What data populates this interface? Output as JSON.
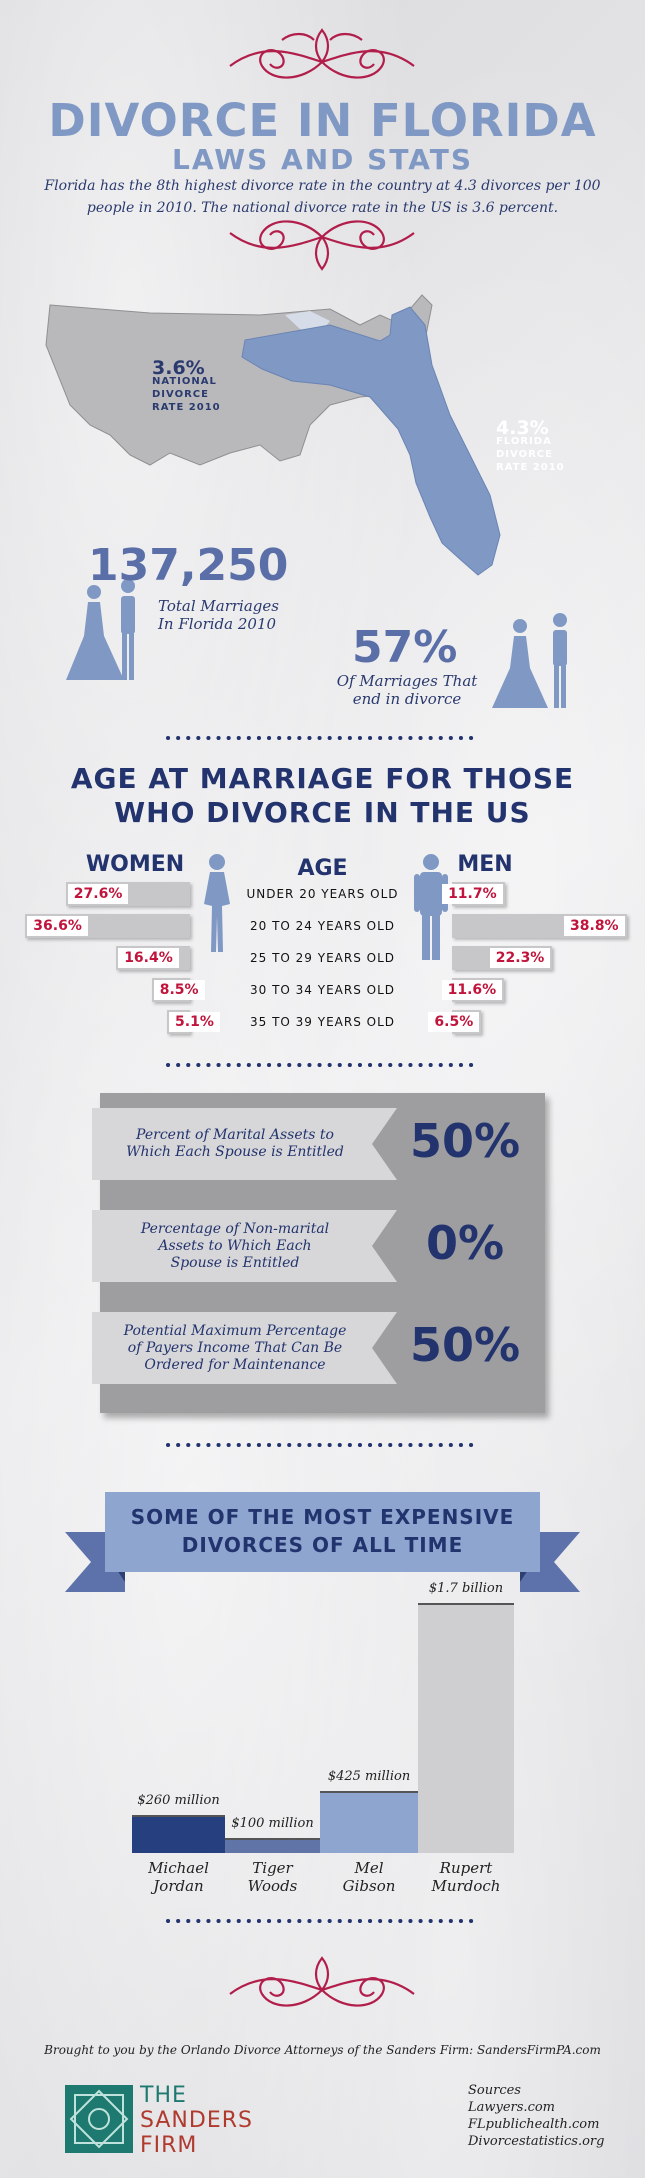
{
  "header": {
    "title": "DIVORCE IN FLORIDA",
    "subtitle": "LAWS AND STATS",
    "intro": "Florida has the 8th highest divorce rate in the country at 4.3 divorces per 100 people in 2010. The national divorce rate in the US is 3.6 percent."
  },
  "map": {
    "national_value": "3.6%",
    "national_line1": "NATIONAL",
    "national_line2": "DIVORCE",
    "national_line3": "RATE 2010",
    "florida_value": "4.3%",
    "florida_line1": "FLORIDA",
    "florida_line2": "DIVORCE",
    "florida_line3": "RATE 2010"
  },
  "stats": {
    "marriages_value": "137,250",
    "marriages_line1": "Total Marriages",
    "marriages_line2": "In Florida 2010",
    "divorce_value": "57%",
    "divorce_line1": "Of Marriages That",
    "divorce_line2": "end in divorce"
  },
  "age_section": {
    "heading_line1": "AGE AT MARRIAGE FOR THOSE",
    "heading_line2": "WHO DIVORCE IN THE US",
    "col_women": "WOMEN",
    "col_age": "AGE",
    "col_men": "MEN"
  },
  "chart_data": [
    {
      "type": "bar",
      "categories": [
        "UNDER 20 YEARS OLD",
        "20 TO 24 YEARS OLD",
        "25 TO 29 YEARS OLD",
        "30 TO 34 YEARS OLD",
        "35 TO 39 YEARS OLD"
      ],
      "series": [
        {
          "name": "WOMEN",
          "values": [
            27.6,
            36.6,
            16.4,
            8.5,
            5.1
          ],
          "labels": [
            "27.6%",
            "36.6%",
            "16.4%",
            "8.5%",
            "5.1%"
          ]
        },
        {
          "name": "MEN",
          "values": [
            11.7,
            38.8,
            22.3,
            11.6,
            6.5
          ],
          "labels": [
            "11.7%",
            "38.8%",
            "22.3%",
            "11.6%",
            "6.5%"
          ]
        }
      ],
      "title": "AGE AT MARRIAGE FOR THOSE WHO DIVORCE IN THE US",
      "colors": {
        "bar": "#c7c7c9",
        "label": "#c0143c"
      }
    },
    {
      "type": "bar",
      "categories": [
        "Michael Jordan",
        "Tiger Woods",
        "Mel Gibson",
        "Rupert Murdoch"
      ],
      "values": [
        260,
        100,
        425,
        1700
      ],
      "value_labels": [
        "$260 million",
        "$100 million",
        "$425 million",
        "$1.7 billion"
      ],
      "name_lines": [
        [
          "Michael",
          "Jordan"
        ],
        [
          "Tiger",
          "Woods"
        ],
        [
          "Mel",
          "Gibson"
        ],
        [
          "Rupert",
          "Murdoch"
        ]
      ],
      "title": "SOME OF THE MOST EXPENSIVE DIVORCES OF ALL TIME",
      "colors": [
        "#263f7e",
        "#6174a8",
        "#8ea6cf",
        "#cfcfd1"
      ]
    }
  ],
  "assets": {
    "items": [
      {
        "line1": "Percent of Marital Assets to",
        "line2": "Which Each Spouse is Entitled",
        "line3": "",
        "value": "50%"
      },
      {
        "line1": "Percentage of Non-marital",
        "line2": "Assets to Which Each",
        "line3": "Spouse is Entitled",
        "value": "0%"
      },
      {
        "line1": "Potential Maximum Percentage",
        "line2": "of Payers Income That Can Be",
        "line3": "Ordered for Maintenance",
        "value": "50%"
      }
    ]
  },
  "divorces": {
    "banner_line1": "SOME OF THE MOST EXPENSIVE",
    "banner_line2": "DIVORCES OF ALL TIME"
  },
  "footer": {
    "credit": "Brought to you by the Orlando Divorce Attorneys of the Sanders Firm: SandersFirmPA.com",
    "logo_line1": "THE",
    "logo_line2": "SANDERS",
    "logo_line3": "FIRM",
    "sources_heading": "Sources",
    "sources": [
      "Lawyers.com",
      "FLpublichealth.com",
      "Divorcestatistics.org"
    ]
  },
  "colors": {
    "title": "#7f98c4",
    "navy": "#22336e",
    "accent_red": "#b21e4b",
    "florida": "#7f98c4"
  }
}
